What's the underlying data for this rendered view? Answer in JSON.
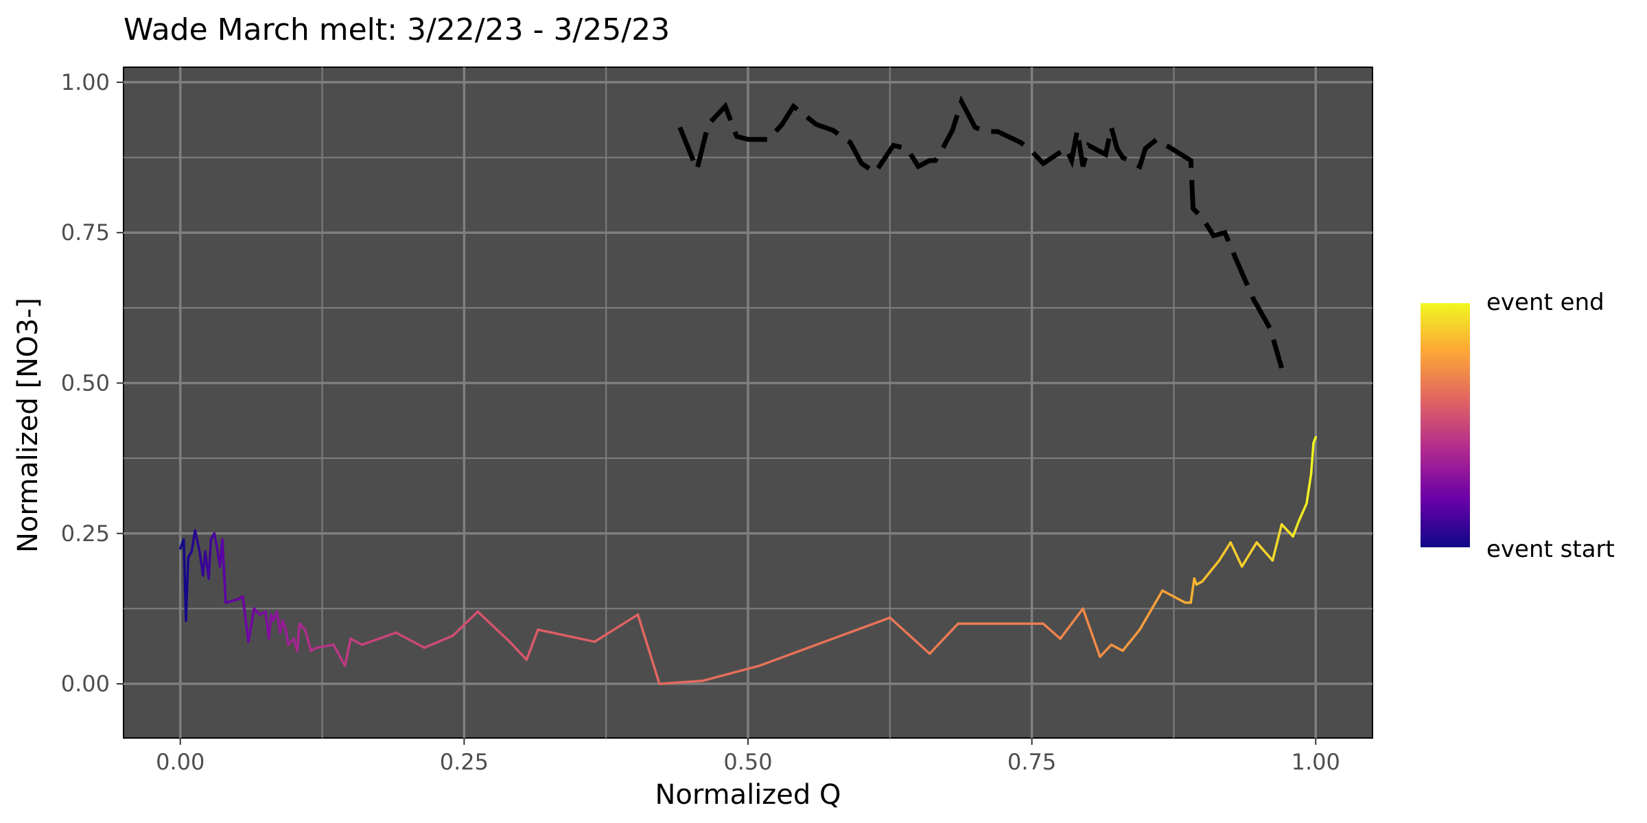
{
  "chart_data": {
    "type": "line",
    "title": "Wade March melt: 3/22/23 - 3/25/23",
    "xlabel": "Normalized Q",
    "ylabel": "Normalized [NO3-]",
    "xlim": [
      -0.05,
      1.05
    ],
    "ylim": [
      -0.09,
      1.025
    ],
    "x_ticks": [
      0,
      0.25,
      0.5,
      0.75,
      1
    ],
    "x_tick_labels": [
      "0.00",
      "0.25",
      "0.50",
      "0.75",
      "1.00"
    ],
    "y_ticks": [
      0,
      0.25,
      0.5,
      0.75,
      1
    ],
    "y_tick_labels": [
      "0.00",
      "0.25",
      "0.50",
      "0.75",
      "1.00"
    ],
    "grid": true,
    "panel_background": "#4d4d4d",
    "grid_color": "#7f7f7f",
    "legend": {
      "placement": "right",
      "type": "colorbar",
      "top_label": "event end",
      "bottom_label": "event start",
      "colors": [
        "#0d0887",
        "#6a00a8",
        "#b12a90",
        "#e16462",
        "#fca636",
        "#f0f921"
      ]
    },
    "series": [
      {
        "color": "#000000",
        "style": "dashed",
        "x": [
          0.44,
          0.455,
          0.465,
          0.48,
          0.49,
          0.5,
          0.518,
          0.53,
          0.54,
          0.56,
          0.575,
          0.59,
          0.6,
          0.612,
          0.628,
          0.64,
          0.65,
          0.66,
          0.665,
          0.67,
          0.68,
          0.688,
          0.7,
          0.71,
          0.72,
          0.74,
          0.75,
          0.76,
          0.78,
          0.785,
          0.79,
          0.795,
          0.8,
          0.815,
          0.82,
          0.825,
          0.83,
          0.845,
          0.85,
          0.86,
          0.89,
          0.892,
          0.9,
          0.91,
          0.92,
          0.93,
          0.945,
          0.96,
          0.97
        ],
        "y": [
          0.925,
          0.855,
          0.93,
          0.96,
          0.91,
          0.905,
          0.905,
          0.93,
          0.96,
          0.93,
          0.92,
          0.9,
          0.865,
          0.85,
          0.895,
          0.89,
          0.86,
          0.87,
          0.87,
          0.885,
          0.92,
          0.968,
          0.925,
          0.918,
          0.918,
          0.9,
          0.885,
          0.865,
          0.89,
          0.87,
          0.92,
          0.86,
          0.895,
          0.88,
          0.925,
          0.89,
          0.875,
          0.86,
          0.89,
          0.905,
          0.87,
          0.79,
          0.775,
          0.745,
          0.75,
          0.705,
          0.64,
          0.59,
          0.525
        ]
      },
      {
        "color_scale": "time",
        "x": [
          0,
          0.003,
          0.005,
          0.007,
          0.01,
          0.013,
          0.017,
          0.02,
          0.022,
          0.025,
          0.027,
          0.03,
          0.032,
          0.035,
          0.037,
          0.04,
          0.05,
          0.055,
          0.06,
          0.065,
          0.07,
          0.075,
          0.078,
          0.08,
          0.082,
          0.085,
          0.088,
          0.09,
          0.093,
          0.095,
          0.1,
          0.103,
          0.105,
          0.11,
          0.115,
          0.12,
          0.135,
          0.145,
          0.15,
          0.16,
          0.175,
          0.19,
          0.215,
          0.24,
          0.262,
          0.29,
          0.305,
          0.315,
          0.365,
          0.403,
          0.422,
          0.46,
          0.51,
          0.625,
          0.66,
          0.685,
          0.76,
          0.775,
          0.795,
          0.81,
          0.82,
          0.825,
          0.83,
          0.845,
          0.865,
          0.875,
          0.885,
          0.89,
          0.893,
          0.895,
          0.9,
          0.915,
          0.925,
          0.935,
          0.948,
          0.962,
          0.97,
          0.98,
          0.985,
          0.992,
          0.996,
          0.998,
          1.0
        ],
        "y": [
          0.225,
          0.24,
          0.105,
          0.21,
          0.22,
          0.255,
          0.22,
          0.18,
          0.22,
          0.175,
          0.24,
          0.25,
          0.23,
          0.195,
          0.24,
          0.135,
          0.14,
          0.145,
          0.07,
          0.125,
          0.115,
          0.12,
          0.075,
          0.115,
          0.105,
          0.12,
          0.085,
          0.105,
          0.09,
          0.065,
          0.075,
          0.055,
          0.1,
          0.09,
          0.055,
          0.06,
          0.065,
          0.03,
          0.075,
          0.065,
          0.075,
          0.085,
          0.06,
          0.08,
          0.12,
          0.07,
          0.04,
          0.09,
          0.07,
          0.115,
          0.0,
          0.005,
          0.03,
          0.11,
          0.05,
          0.1,
          0.1,
          0.075,
          0.125,
          0.045,
          0.065,
          0.06,
          0.055,
          0.09,
          0.155,
          0.145,
          0.135,
          0.135,
          0.175,
          0.165,
          0.17,
          0.205,
          0.235,
          0.195,
          0.235,
          0.205,
          0.265,
          0.245,
          0.27,
          0.3,
          0.35,
          0.4,
          0.41
        ]
      }
    ]
  }
}
